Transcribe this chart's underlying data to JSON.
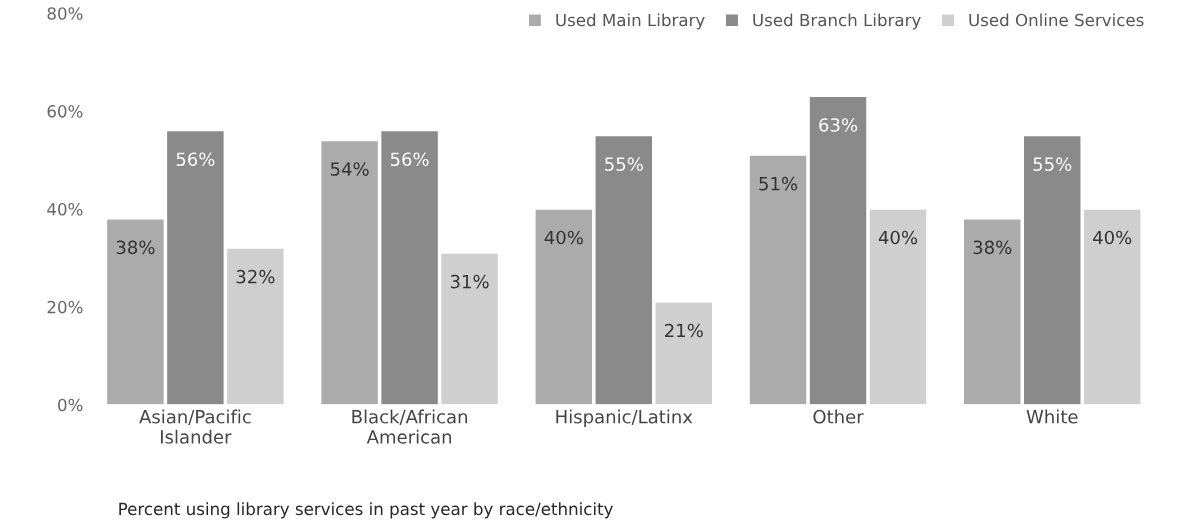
{
  "chart_data": {
    "type": "bar",
    "categories": [
      "Asian/Pacific\nIslander",
      "Black/African\nAmerican",
      "Hispanic/Latinx",
      "Other",
      "White"
    ],
    "series": [
      {
        "name": "Used Main Library",
        "color": "#ababab",
        "values": [
          38,
          54,
          40,
          51,
          38
        ],
        "value_labels": [
          "38%",
          "54%",
          "40%",
          "51%",
          "38%"
        ]
      },
      {
        "name": "Used Branch Library",
        "color": "#8a8a8a",
        "values": [
          56,
          56,
          55,
          63,
          55
        ],
        "value_labels": [
          "56%",
          "56%",
          "55%",
          "63%",
          "55%"
        ]
      },
      {
        "name": "Used Online Services",
        "color": "#cfcfcf",
        "values": [
          32,
          31,
          21,
          40,
          40
        ],
        "value_labels": [
          "32%",
          "31%",
          "21%",
          "40%",
          "40%"
        ]
      }
    ],
    "ylim": [
      0,
      80
    ],
    "yticks": [
      {
        "value": 0,
        "label": "0%"
      },
      {
        "value": 20,
        "label": "20%"
      },
      {
        "value": 40,
        "label": "40%"
      },
      {
        "value": 60,
        "label": "60%"
      },
      {
        "value": 80,
        "label": "80%"
      }
    ],
    "legend": "top right",
    "grid": false,
    "annotations": [
      "Percent using library services in past year by race/ethnicity"
    ]
  }
}
